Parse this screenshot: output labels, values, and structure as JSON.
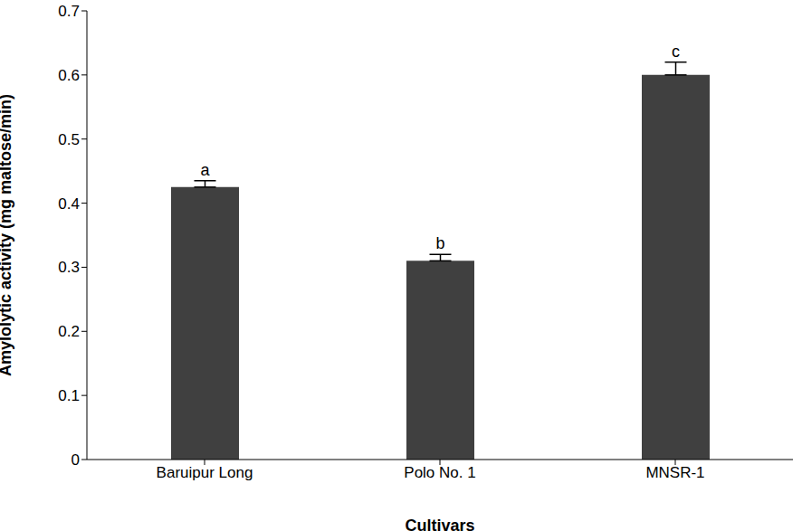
{
  "chart_data": {
    "type": "bar",
    "categories": [
      "Baruipur Long",
      "Polo No. 1",
      "MNSR-1"
    ],
    "values": [
      0.425,
      0.31,
      0.6
    ],
    "errors": [
      0.01,
      0.01,
      0.02
    ],
    "annotations": [
      "a",
      "b",
      "c"
    ],
    "color": "#404040",
    "xlabel": "Cultivars",
    "ylabel": "Amylolytic activity (mg maltose/min)",
    "ylim": [
      0,
      0.7
    ],
    "yticks": [
      0,
      0.1,
      0.2,
      0.3,
      0.4,
      0.5,
      0.6,
      0.7
    ],
    "grid": false
  }
}
